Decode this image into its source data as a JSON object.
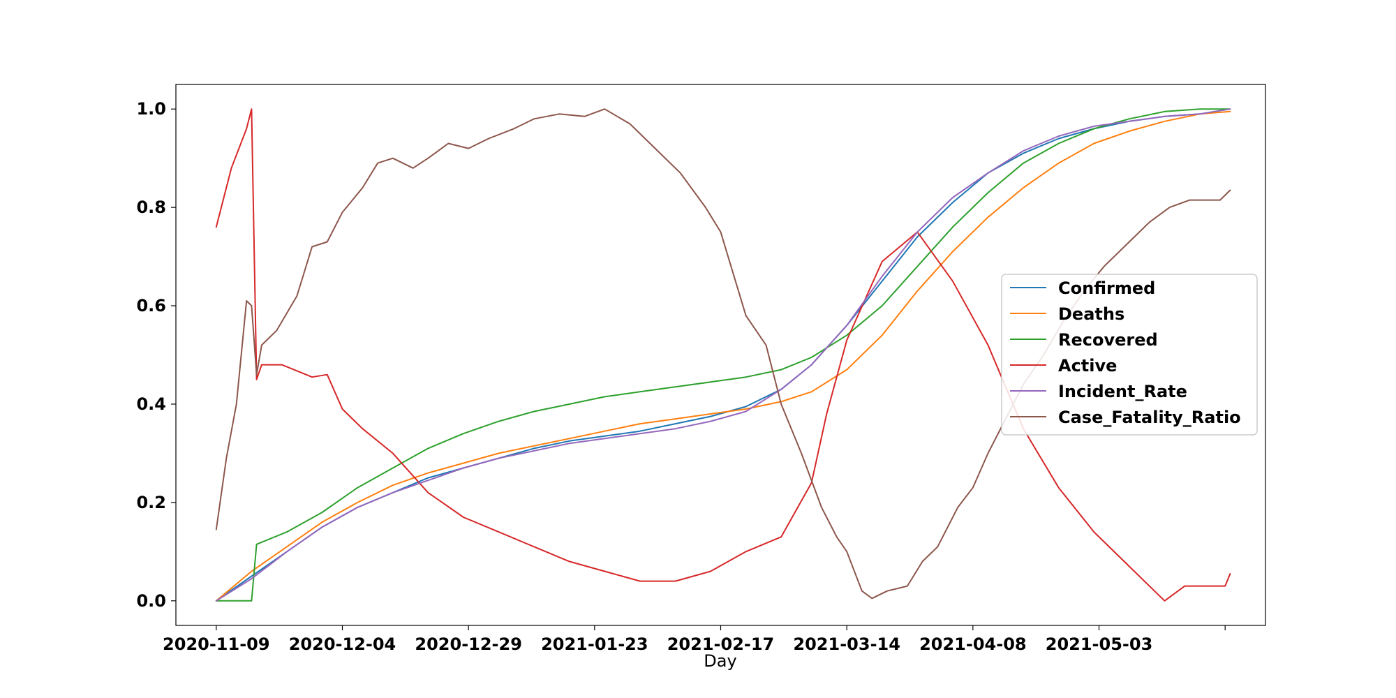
{
  "chart_data": {
    "type": "line",
    "xlabel": "Day",
    "ylabel": "",
    "title": "",
    "x_start": "2020-11-09",
    "x_end": "2021-05-29",
    "xlim": [
      "2020-11-01",
      "2021-06-05"
    ],
    "ylim": [
      -0.05,
      1.05
    ],
    "x_ticks": [
      {
        "date": "2020-11-09",
        "label": "2020-11-09"
      },
      {
        "date": "2020-12-04",
        "label": "2020-12-04"
      },
      {
        "date": "2020-12-29",
        "label": "2020-12-29"
      },
      {
        "date": "2021-01-23",
        "label": "2021-01-23"
      },
      {
        "date": "2021-02-17",
        "label": "2021-02-17"
      },
      {
        "date": "2021-03-14",
        "label": "2021-03-14"
      },
      {
        "date": "2021-04-08",
        "label": "2021-04-08"
      },
      {
        "date": "2021-05-03",
        "label": "2021-05-03"
      },
      {
        "date": "2021-05-28",
        "label": ""
      }
    ],
    "y_ticks": [
      {
        "value": 0.0,
        "label": "0.0"
      },
      {
        "value": 0.2,
        "label": "0.2"
      },
      {
        "value": 0.4,
        "label": "0.4"
      },
      {
        "value": 0.6,
        "label": "0.6"
      },
      {
        "value": 0.8,
        "label": "0.8"
      },
      {
        "value": 1.0,
        "label": "1.0"
      }
    ],
    "grid": false,
    "legend_position": "center-right",
    "series": [
      {
        "name": "Confirmed",
        "color": "#1f77b4",
        "points": [
          [
            "2020-11-09",
            0.0
          ],
          [
            "2020-11-16",
            0.05
          ],
          [
            "2020-11-23",
            0.1
          ],
          [
            "2020-11-30",
            0.15
          ],
          [
            "2020-12-07",
            0.19
          ],
          [
            "2020-12-14",
            0.22
          ],
          [
            "2020-12-21",
            0.25
          ],
          [
            "2020-12-28",
            0.27
          ],
          [
            "2021-01-04",
            0.29
          ],
          [
            "2021-01-11",
            0.31
          ],
          [
            "2021-01-18",
            0.325
          ],
          [
            "2021-01-25",
            0.335
          ],
          [
            "2021-02-01",
            0.345
          ],
          [
            "2021-02-08",
            0.36
          ],
          [
            "2021-02-15",
            0.375
          ],
          [
            "2021-02-22",
            0.395
          ],
          [
            "2021-03-01",
            0.43
          ],
          [
            "2021-03-07",
            0.48
          ],
          [
            "2021-03-14",
            0.56
          ],
          [
            "2021-03-21",
            0.65
          ],
          [
            "2021-03-28",
            0.74
          ],
          [
            "2021-04-04",
            0.81
          ],
          [
            "2021-04-11",
            0.87
          ],
          [
            "2021-04-18",
            0.91
          ],
          [
            "2021-04-25",
            0.94
          ],
          [
            "2021-05-02",
            0.96
          ],
          [
            "2021-05-09",
            0.975
          ],
          [
            "2021-05-16",
            0.985
          ],
          [
            "2021-05-23",
            0.99
          ],
          [
            "2021-05-29",
            1.0
          ]
        ]
      },
      {
        "name": "Deaths",
        "color": "#ff7f0e",
        "points": [
          [
            "2020-11-09",
            0.0
          ],
          [
            "2020-11-16",
            0.06
          ],
          [
            "2020-11-23",
            0.11
          ],
          [
            "2020-11-30",
            0.16
          ],
          [
            "2020-12-07",
            0.2
          ],
          [
            "2020-12-14",
            0.235
          ],
          [
            "2020-12-21",
            0.26
          ],
          [
            "2020-12-28",
            0.28
          ],
          [
            "2021-01-04",
            0.3
          ],
          [
            "2021-01-11",
            0.315
          ],
          [
            "2021-01-18",
            0.33
          ],
          [
            "2021-01-25",
            0.345
          ],
          [
            "2021-02-01",
            0.36
          ],
          [
            "2021-02-08",
            0.37
          ],
          [
            "2021-02-15",
            0.38
          ],
          [
            "2021-02-22",
            0.39
          ],
          [
            "2021-03-01",
            0.405
          ],
          [
            "2021-03-07",
            0.425
          ],
          [
            "2021-03-14",
            0.47
          ],
          [
            "2021-03-21",
            0.54
          ],
          [
            "2021-03-28",
            0.63
          ],
          [
            "2021-04-04",
            0.71
          ],
          [
            "2021-04-11",
            0.78
          ],
          [
            "2021-04-18",
            0.84
          ],
          [
            "2021-04-25",
            0.89
          ],
          [
            "2021-05-02",
            0.93
          ],
          [
            "2021-05-09",
            0.955
          ],
          [
            "2021-05-16",
            0.975
          ],
          [
            "2021-05-23",
            0.99
          ],
          [
            "2021-05-29",
            0.995
          ]
        ]
      },
      {
        "name": "Recovered",
        "color": "#2ca02c",
        "points": [
          [
            "2020-11-09",
            0.0
          ],
          [
            "2020-11-16",
            0.0
          ],
          [
            "2020-11-17",
            0.115
          ],
          [
            "2020-11-23",
            0.14
          ],
          [
            "2020-11-30",
            0.18
          ],
          [
            "2020-12-07",
            0.23
          ],
          [
            "2020-12-14",
            0.27
          ],
          [
            "2020-12-21",
            0.31
          ],
          [
            "2020-12-28",
            0.34
          ],
          [
            "2021-01-04",
            0.365
          ],
          [
            "2021-01-11",
            0.385
          ],
          [
            "2021-01-18",
            0.4
          ],
          [
            "2021-01-25",
            0.415
          ],
          [
            "2021-02-01",
            0.425
          ],
          [
            "2021-02-08",
            0.435
          ],
          [
            "2021-02-15",
            0.445
          ],
          [
            "2021-02-22",
            0.455
          ],
          [
            "2021-03-01",
            0.47
          ],
          [
            "2021-03-07",
            0.495
          ],
          [
            "2021-03-14",
            0.54
          ],
          [
            "2021-03-21",
            0.6
          ],
          [
            "2021-03-28",
            0.68
          ],
          [
            "2021-04-04",
            0.76
          ],
          [
            "2021-04-11",
            0.83
          ],
          [
            "2021-04-18",
            0.89
          ],
          [
            "2021-04-25",
            0.93
          ],
          [
            "2021-05-02",
            0.96
          ],
          [
            "2021-05-09",
            0.98
          ],
          [
            "2021-05-16",
            0.995
          ],
          [
            "2021-05-23",
            1.0
          ],
          [
            "2021-05-29",
            1.0
          ]
        ]
      },
      {
        "name": "Active",
        "color": "#d62728",
        "points": [
          [
            "2020-11-09",
            0.76
          ],
          [
            "2020-11-12",
            0.88
          ],
          [
            "2020-11-15",
            0.96
          ],
          [
            "2020-11-16",
            1.0
          ],
          [
            "2020-11-17",
            0.45
          ],
          [
            "2020-11-18",
            0.48
          ],
          [
            "2020-11-22",
            0.48
          ],
          [
            "2020-11-28",
            0.455
          ],
          [
            "2020-12-01",
            0.46
          ],
          [
            "2020-12-04",
            0.39
          ],
          [
            "2020-12-08",
            0.35
          ],
          [
            "2020-12-14",
            0.3
          ],
          [
            "2020-12-21",
            0.22
          ],
          [
            "2020-12-28",
            0.17
          ],
          [
            "2021-01-04",
            0.14
          ],
          [
            "2021-01-11",
            0.11
          ],
          [
            "2021-01-18",
            0.08
          ],
          [
            "2021-01-25",
            0.06
          ],
          [
            "2021-02-01",
            0.04
          ],
          [
            "2021-02-08",
            0.04
          ],
          [
            "2021-02-15",
            0.06
          ],
          [
            "2021-02-22",
            0.1
          ],
          [
            "2021-03-01",
            0.13
          ],
          [
            "2021-03-07",
            0.24
          ],
          [
            "2021-03-10",
            0.38
          ],
          [
            "2021-03-14",
            0.53
          ],
          [
            "2021-03-21",
            0.69
          ],
          [
            "2021-03-28",
            0.75
          ],
          [
            "2021-04-04",
            0.65
          ],
          [
            "2021-04-11",
            0.52
          ],
          [
            "2021-04-18",
            0.35
          ],
          [
            "2021-04-25",
            0.23
          ],
          [
            "2021-05-02",
            0.14
          ],
          [
            "2021-05-09",
            0.07
          ],
          [
            "2021-05-16",
            0.0
          ],
          [
            "2021-05-20",
            0.03
          ],
          [
            "2021-05-28",
            0.03
          ],
          [
            "2021-05-29",
            0.055
          ]
        ]
      },
      {
        "name": "Incident_Rate",
        "color": "#9467bd",
        "points": [
          [
            "2020-11-09",
            0.0
          ],
          [
            "2020-11-16",
            0.045
          ],
          [
            "2020-11-23",
            0.1
          ],
          [
            "2020-11-30",
            0.15
          ],
          [
            "2020-12-07",
            0.19
          ],
          [
            "2020-12-14",
            0.22
          ],
          [
            "2020-12-21",
            0.245
          ],
          [
            "2020-12-28",
            0.27
          ],
          [
            "2021-01-04",
            0.29
          ],
          [
            "2021-01-11",
            0.305
          ],
          [
            "2021-01-18",
            0.32
          ],
          [
            "2021-01-25",
            0.33
          ],
          [
            "2021-02-01",
            0.34
          ],
          [
            "2021-02-08",
            0.35
          ],
          [
            "2021-02-15",
            0.365
          ],
          [
            "2021-02-22",
            0.385
          ],
          [
            "2021-03-01",
            0.43
          ],
          [
            "2021-03-07",
            0.48
          ],
          [
            "2021-03-14",
            0.56
          ],
          [
            "2021-03-21",
            0.66
          ],
          [
            "2021-03-28",
            0.75
          ],
          [
            "2021-04-04",
            0.82
          ],
          [
            "2021-04-11",
            0.87
          ],
          [
            "2021-04-18",
            0.915
          ],
          [
            "2021-04-25",
            0.945
          ],
          [
            "2021-05-02",
            0.965
          ],
          [
            "2021-05-09",
            0.975
          ],
          [
            "2021-05-16",
            0.985
          ],
          [
            "2021-05-23",
            0.99
          ],
          [
            "2021-05-29",
            1.0
          ]
        ]
      },
      {
        "name": "Case_Fatality_Ratio",
        "color": "#8c564b",
        "points": [
          [
            "2020-11-09",
            0.145
          ],
          [
            "2020-11-11",
            0.29
          ],
          [
            "2020-11-13",
            0.4
          ],
          [
            "2020-11-15",
            0.61
          ],
          [
            "2020-11-16",
            0.6
          ],
          [
            "2020-11-17",
            0.46
          ],
          [
            "2020-11-18",
            0.52
          ],
          [
            "2020-11-21",
            0.55
          ],
          [
            "2020-11-25",
            0.62
          ],
          [
            "2020-11-28",
            0.72
          ],
          [
            "2020-12-01",
            0.73
          ],
          [
            "2020-12-04",
            0.79
          ],
          [
            "2020-12-08",
            0.84
          ],
          [
            "2020-12-11",
            0.89
          ],
          [
            "2020-12-14",
            0.9
          ],
          [
            "2020-12-18",
            0.88
          ],
          [
            "2020-12-21",
            0.9
          ],
          [
            "2020-12-25",
            0.93
          ],
          [
            "2020-12-29",
            0.92
          ],
          [
            "2021-01-02",
            0.94
          ],
          [
            "2021-01-07",
            0.96
          ],
          [
            "2021-01-11",
            0.98
          ],
          [
            "2021-01-16",
            0.99
          ],
          [
            "2021-01-21",
            0.985
          ],
          [
            "2021-01-25",
            1.0
          ],
          [
            "2021-01-30",
            0.97
          ],
          [
            "2021-02-04",
            0.92
          ],
          [
            "2021-02-09",
            0.87
          ],
          [
            "2021-02-14",
            0.8
          ],
          [
            "2021-02-17",
            0.75
          ],
          [
            "2021-02-22",
            0.58
          ],
          [
            "2021-02-26",
            0.52
          ],
          [
            "2021-03-01",
            0.4
          ],
          [
            "2021-03-05",
            0.3
          ],
          [
            "2021-03-09",
            0.19
          ],
          [
            "2021-03-12",
            0.13
          ],
          [
            "2021-03-14",
            0.1
          ],
          [
            "2021-03-17",
            0.02
          ],
          [
            "2021-03-19",
            0.005
          ],
          [
            "2021-03-22",
            0.02
          ],
          [
            "2021-03-26",
            0.03
          ],
          [
            "2021-03-29",
            0.08
          ],
          [
            "2021-04-01",
            0.11
          ],
          [
            "2021-04-05",
            0.19
          ],
          [
            "2021-04-08",
            0.23
          ],
          [
            "2021-04-11",
            0.3
          ],
          [
            "2021-04-15",
            0.38
          ],
          [
            "2021-04-18",
            0.44
          ],
          [
            "2021-04-22",
            0.5
          ],
          [
            "2021-04-26",
            0.57
          ],
          [
            "2021-04-30",
            0.63
          ],
          [
            "2021-05-04",
            0.68
          ],
          [
            "2021-05-09",
            0.73
          ],
          [
            "2021-05-13",
            0.77
          ],
          [
            "2021-05-17",
            0.8
          ],
          [
            "2021-05-21",
            0.815
          ],
          [
            "2021-05-27",
            0.815
          ],
          [
            "2021-05-29",
            0.835
          ]
        ]
      }
    ]
  }
}
